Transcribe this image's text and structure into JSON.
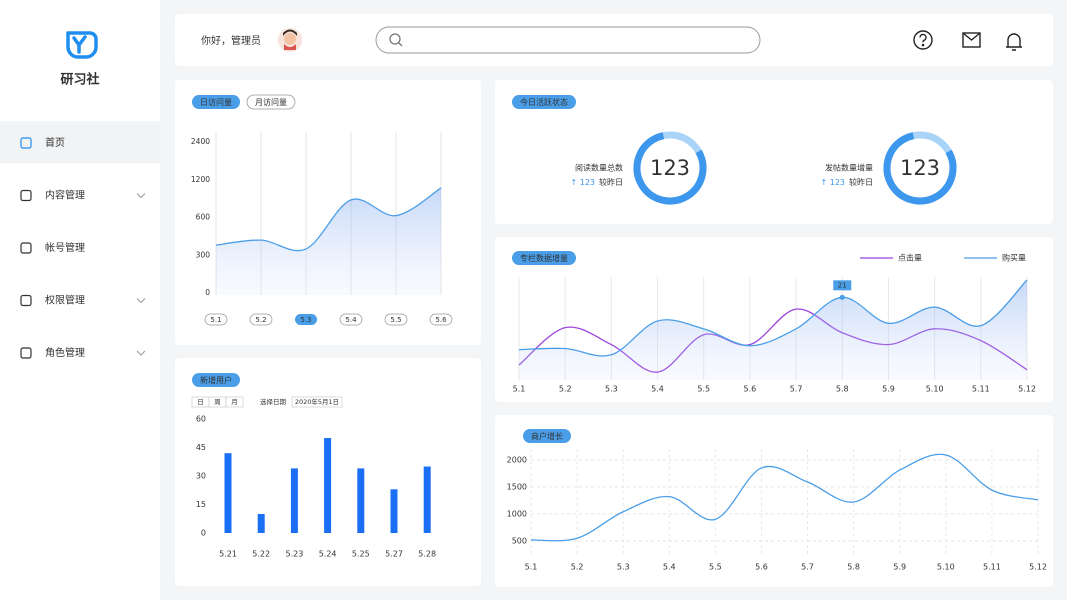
{
  "sidebar": {
    "brand": "研习社",
    "menu": [
      {
        "label": "首页",
        "active": true
      },
      {
        "label": "内容管理",
        "expandable": true
      },
      {
        "label": "帐号管理"
      },
      {
        "label": "权限管理",
        "expandable": true
      },
      {
        "label": "角色管理",
        "expandable": true
      }
    ]
  },
  "header": {
    "greeting": "你好，管理员"
  },
  "chart_data": [
    {
      "type": "line",
      "tabs": [
        {
          "label": "日访问量",
          "active": true
        },
        {
          "label": "月访问量"
        }
      ],
      "categories": [
        "5.1",
        "5.2",
        "5.3",
        "5.4",
        "5.5",
        "5.6"
      ],
      "selected": "5.3",
      "values": [
        380,
        420,
        350,
        880,
        630,
        1070
      ],
      "color": "#4a9ee8",
      "area": true,
      "ylim": [
        0,
        2400
      ],
      "yticks": [
        0,
        300,
        600,
        1200,
        2400
      ]
    },
    {
      "type": "rings",
      "title": "今日活跃状态",
      "items": [
        {
          "label": "阅读数量总数",
          "value": 123,
          "change": "↑ 123",
          "compare": "较昨日"
        },
        {
          "label": "发帖数量增量",
          "value": 123,
          "change": "↑ 123",
          "compare": "较昨日"
        }
      ]
    },
    {
      "type": "line",
      "title": "专栏数据增量",
      "categories": [
        "5.1",
        "5.2",
        "5.3",
        "5.4",
        "5.5",
        "5.6",
        "5.7",
        "5.8",
        "5.9",
        "5.10",
        "5.11",
        "5.12"
      ],
      "series": [
        {
          "name": "点击量",
          "color": "#9b45dd",
          "values": [
            3.8,
            13.3,
            9,
            2,
            11.5,
            9,
            18,
            12,
            9,
            13,
            10,
            2.6
          ]
        },
        {
          "name": "购买量",
          "color": "#4a9ee8",
          "area": true,
          "values": [
            7.7,
            8,
            6.4,
            15,
            13,
            8.7,
            13,
            21,
            14.4,
            18.5,
            13.8,
            25.4
          ],
          "value_labels": [
            null,
            null,
            null,
            null,
            null,
            null,
            null,
            "21",
            null,
            null,
            null,
            null
          ]
        }
      ]
    },
    {
      "type": "bar",
      "title": "新增用户",
      "tabs": [
        "日",
        "周",
        "月"
      ],
      "date_label": "选择日期",
      "date": "2020年5月1日",
      "categories": [
        "5.21",
        "5.22",
        "5.23",
        "5.24",
        "5.25",
        "5.27",
        "5.28"
      ],
      "values": [
        42,
        10,
        34,
        50,
        34,
        23,
        35
      ],
      "color": "#1a6ff5",
      "ylim": [
        0,
        60
      ],
      "yticks": [
        0,
        15,
        30,
        45,
        60
      ]
    },
    {
      "type": "line",
      "title": "商户增长",
      "categories": [
        "5.1",
        "5.2",
        "5.3",
        "5.4",
        "5.5",
        "5.6",
        "5.7",
        "5.8",
        "5.9",
        "5.10",
        "5.11",
        "5.12"
      ],
      "values": [
        520,
        550,
        1040,
        1320,
        900,
        1850,
        1590,
        1220,
        1810,
        2090,
        1440,
        1260
      ],
      "color": "#4a9ee8",
      "ylim": [
        250,
        2200
      ],
      "yticks": [
        500,
        1000,
        1500,
        2000
      ],
      "grid": true
    }
  ]
}
